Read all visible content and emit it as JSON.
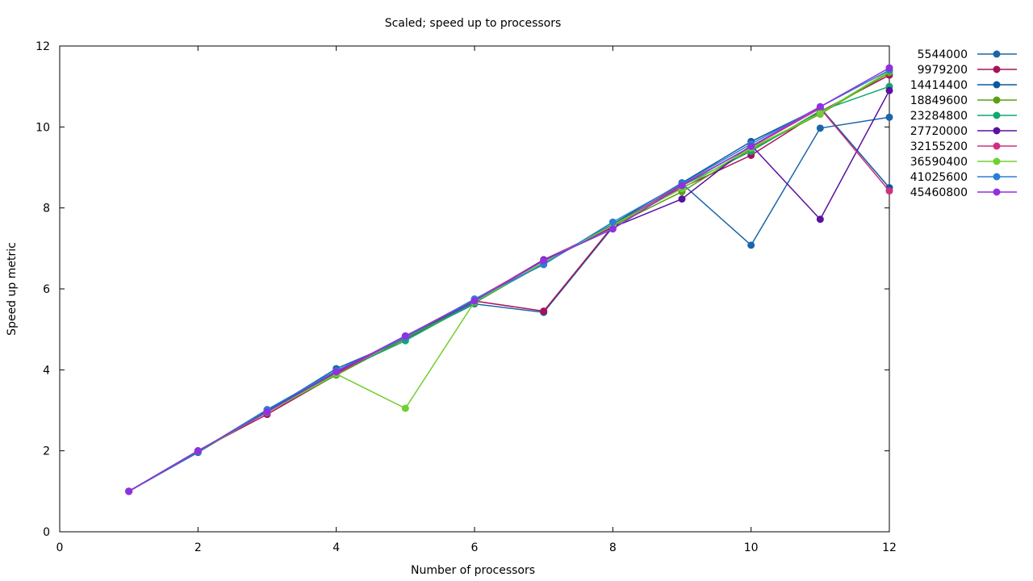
{
  "chart_data": {
    "type": "line",
    "title": "Scaled; speed up to processors",
    "xlabel": "Number of processors",
    "ylabel": "Speed up metric",
    "xlim": [
      0,
      12
    ],
    "ylim": [
      0,
      12
    ],
    "xticks": [
      0,
      2,
      4,
      6,
      8,
      10,
      12
    ],
    "yticks": [
      0,
      2,
      4,
      6,
      8,
      10,
      12
    ],
    "grid": false,
    "legend_position": "right",
    "x": [
      1,
      2,
      3,
      4,
      5,
      6,
      7,
      8,
      9,
      10,
      11,
      12
    ],
    "series": [
      {
        "name": "5544000",
        "color": "#1a66a8",
        "values": [
          1.0,
          1.96,
          2.98,
          4.03,
          4.76,
          5.63,
          5.42,
          7.52,
          8.6,
          7.08,
          9.97,
          10.24
        ]
      },
      {
        "name": "9979200",
        "color": "#a8105a",
        "values": [
          1.0,
          2.0,
          2.9,
          3.88,
          4.77,
          5.7,
          5.45,
          7.55,
          8.5,
          9.3,
          10.38,
          11.28
        ]
      },
      {
        "name": "14414400",
        "color": "#0a5aa0",
        "values": [
          1.0,
          1.98,
          3.0,
          3.95,
          4.8,
          5.68,
          6.62,
          7.6,
          8.62,
          9.64,
          10.48,
          8.5
        ]
      },
      {
        "name": "18849600",
        "color": "#5aa010",
        "values": [
          1.0,
          1.98,
          2.95,
          3.87,
          4.78,
          5.65,
          6.65,
          7.55,
          8.4,
          9.45,
          10.32,
          11.34
        ]
      },
      {
        "name": "23284800",
        "color": "#10a870",
        "values": [
          1.0,
          1.99,
          2.97,
          3.92,
          4.72,
          5.66,
          6.64,
          7.58,
          8.55,
          9.4,
          10.4,
          11.0
        ]
      },
      {
        "name": "27720000",
        "color": "#5a10a0",
        "values": [
          1.0,
          2.0,
          2.96,
          3.93,
          4.82,
          5.72,
          6.72,
          7.52,
          8.22,
          9.55,
          7.72,
          10.9
        ]
      },
      {
        "name": "32155200",
        "color": "#d03080",
        "values": [
          1.0,
          2.0,
          2.95,
          3.9,
          4.83,
          5.74,
          6.7,
          7.55,
          8.58,
          9.5,
          10.46,
          8.42
        ]
      },
      {
        "name": "36590400",
        "color": "#70d030",
        "values": [
          1.0,
          2.0,
          2.95,
          3.9,
          3.05,
          5.68,
          6.66,
          7.57,
          8.48,
          9.48,
          10.34,
          11.38
        ]
      },
      {
        "name": "41025600",
        "color": "#2a80d0",
        "values": [
          1.0,
          1.98,
          3.02,
          3.98,
          4.8,
          5.75,
          6.6,
          7.65,
          8.6,
          9.58,
          10.5,
          11.4
        ]
      },
      {
        "name": "45460800",
        "color": "#9030e0",
        "values": [
          1.0,
          2.0,
          2.96,
          3.95,
          4.84,
          5.7,
          6.7,
          7.48,
          8.55,
          9.52,
          10.5,
          11.46
        ]
      }
    ]
  }
}
